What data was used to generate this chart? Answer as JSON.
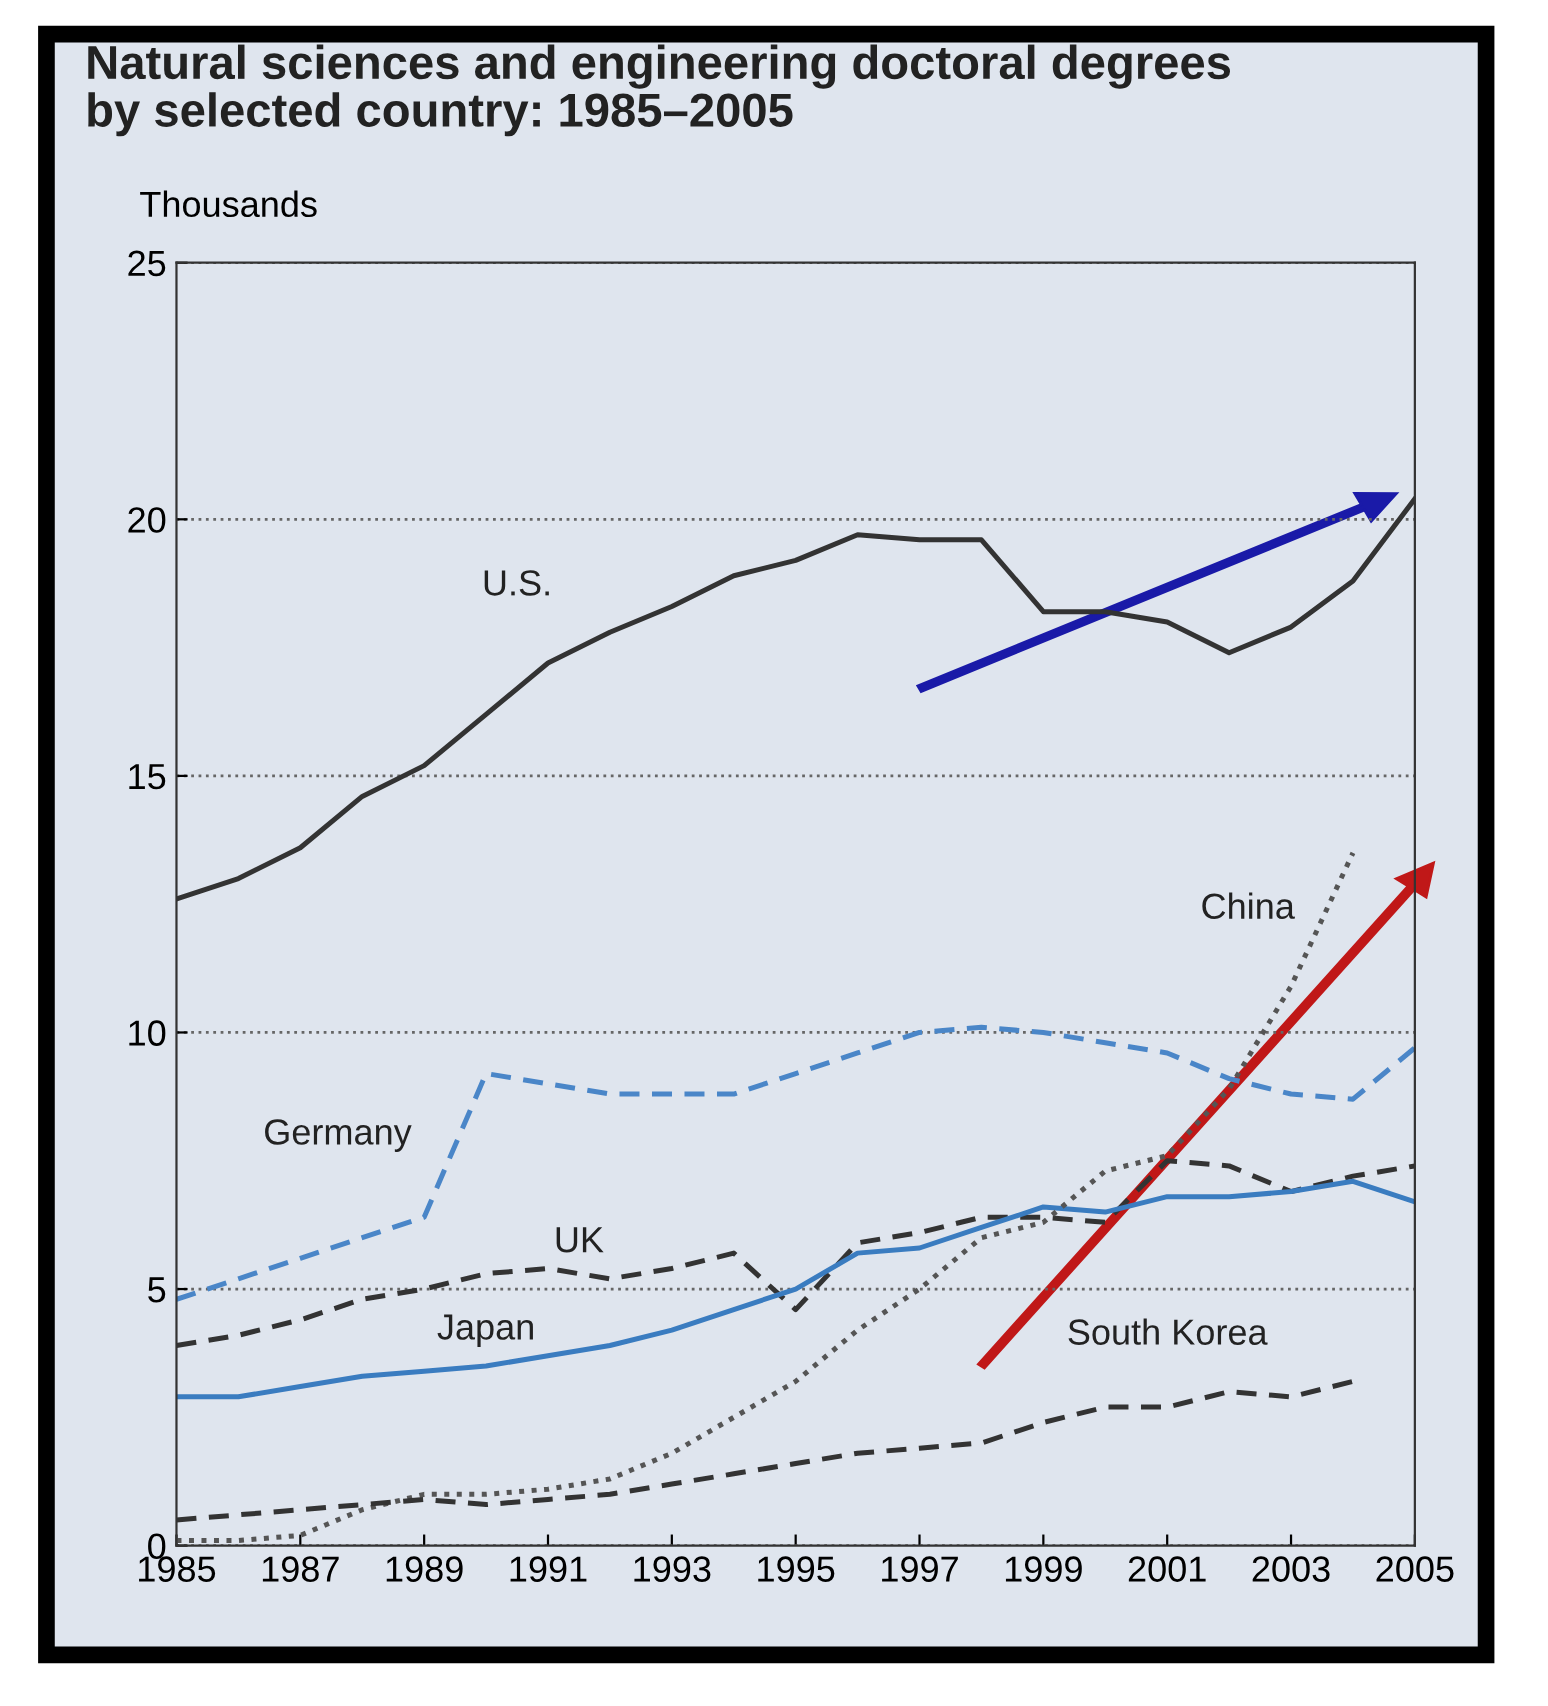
{
  "chart_data": {
    "type": "line",
    "title": "Natural sciences and engineering doctoral degrees\nby selected country: 1985–2005",
    "ylabel": "Thousands",
    "x": [
      1985,
      1986,
      1987,
      1988,
      1989,
      1990,
      1991,
      1992,
      1993,
      1994,
      1995,
      1996,
      1997,
      1998,
      1999,
      2000,
      2001,
      2002,
      2003,
      2004,
      2005
    ],
    "xlim": [
      1985,
      2005
    ],
    "xticks": [
      1985,
      1987,
      1989,
      1991,
      1993,
      1995,
      1997,
      1999,
      2001,
      2003,
      2005
    ],
    "ylim": [
      0,
      25
    ],
    "yticks": [
      0,
      5,
      10,
      15,
      20,
      25
    ],
    "grid": "y",
    "legend": false,
    "marker": "none",
    "series": [
      {
        "name": "U.S.",
        "color": "#333333",
        "line_style": "solid",
        "values": [
          12.6,
          13.0,
          13.6,
          14.6,
          15.2,
          16.2,
          17.2,
          17.8,
          18.3,
          18.9,
          19.2,
          19.7,
          19.6,
          19.6,
          18.2,
          18.2,
          18.0,
          17.4,
          17.9,
          18.8,
          20.4
        ]
      },
      {
        "name": "Germany",
        "color": "#4a86c8",
        "line_style": "dashed",
        "values": [
          4.8,
          5.2,
          5.6,
          6.0,
          6.4,
          9.2,
          9.0,
          8.8,
          8.8,
          8.8,
          9.2,
          9.6,
          10.0,
          10.1,
          10.0,
          9.8,
          9.6,
          9.1,
          8.8,
          8.7,
          9.7
        ]
      },
      {
        "name": "UK",
        "color": "#333333",
        "line_style": "dashed",
        "values": [
          3.9,
          4.1,
          4.4,
          4.8,
          5.0,
          5.3,
          5.4,
          5.2,
          5.4,
          5.7,
          4.6,
          5.9,
          6.1,
          6.4,
          6.4,
          6.3,
          7.5,
          7.4,
          6.9,
          7.2,
          7.4
        ]
      },
      {
        "name": "Japan",
        "color": "#3a7cc0",
        "line_style": "solid",
        "values": [
          2.9,
          2.9,
          3.1,
          3.3,
          3.4,
          3.5,
          3.7,
          3.9,
          4.2,
          4.6,
          5.0,
          5.7,
          5.8,
          6.2,
          6.6,
          6.5,
          6.8,
          6.8,
          6.9,
          7.1,
          6.7
        ]
      },
      {
        "name": "China",
        "color": "#555555",
        "line_style": "dotted",
        "values": [
          0.1,
          0.1,
          0.2,
          0.7,
          1.0,
          1.0,
          1.1,
          1.3,
          1.8,
          2.5,
          3.2,
          4.2,
          5.0,
          6.0,
          6.3,
          7.3,
          7.6,
          8.9,
          10.9,
          13.5,
          null
        ]
      },
      {
        "name": "South Korea",
        "color": "#333333",
        "line_style": "dashed",
        "values": [
          0.5,
          0.6,
          0.7,
          0.8,
          0.9,
          0.8,
          0.9,
          1.0,
          1.2,
          1.4,
          1.6,
          1.8,
          1.9,
          2.0,
          2.4,
          2.7,
          2.7,
          3.0,
          2.9,
          3.2,
          null
        ]
      }
    ]
  }
}
